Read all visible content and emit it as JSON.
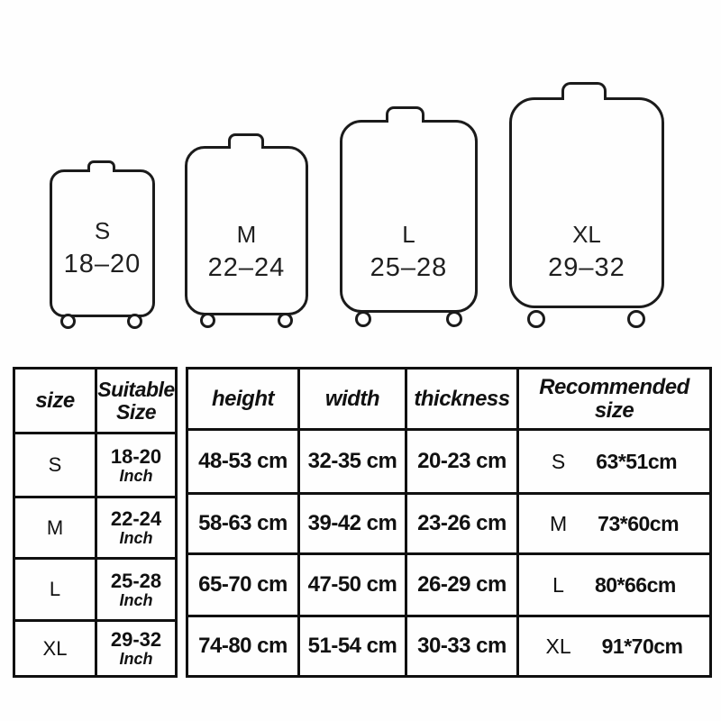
{
  "illustrations": {
    "items": [
      {
        "label": "S",
        "range": "18–20"
      },
      {
        "label": "M",
        "range": "22–24"
      },
      {
        "label": "L",
        "range": "25–28"
      },
      {
        "label": "XL",
        "range": "29–32"
      }
    ]
  },
  "size_table": {
    "headers": {
      "size": "size",
      "suitable": "Suitable Size"
    },
    "rows": [
      {
        "size": "S",
        "suitable": "18-20",
        "unit": "Inch"
      },
      {
        "size": "M",
        "suitable": "22-24",
        "unit": "Inch"
      },
      {
        "size": "L",
        "suitable": "25-28",
        "unit": "Inch"
      },
      {
        "size": "XL",
        "suitable": "29-32",
        "unit": "Inch"
      }
    ]
  },
  "dimension_table": {
    "headers": {
      "height": "height",
      "width": "width",
      "thickness": "thickness",
      "recommended": "Recommended size"
    },
    "rows": [
      {
        "height": "48-53 cm",
        "width": "32-35 cm",
        "thickness": "20-23 cm",
        "rec_size": "S",
        "rec_dim": "63*51cm"
      },
      {
        "height": "58-63 cm",
        "width": "39-42 cm",
        "thickness": "23-26 cm",
        "rec_size": "M",
        "rec_dim": "73*60cm"
      },
      {
        "height": "65-70 cm",
        "width": "47-50 cm",
        "thickness": "26-29 cm",
        "rec_size": "L",
        "rec_dim": "80*66cm"
      },
      {
        "height": "74-80 cm",
        "width": "51-54 cm",
        "thickness": "30-33 cm",
        "rec_size": "XL",
        "rec_dim": "91*70cm"
      }
    ]
  },
  "colors": {
    "line": "#1b1b1b",
    "table_line": "#101010",
    "background": "#fefefe",
    "text": "#111111"
  }
}
